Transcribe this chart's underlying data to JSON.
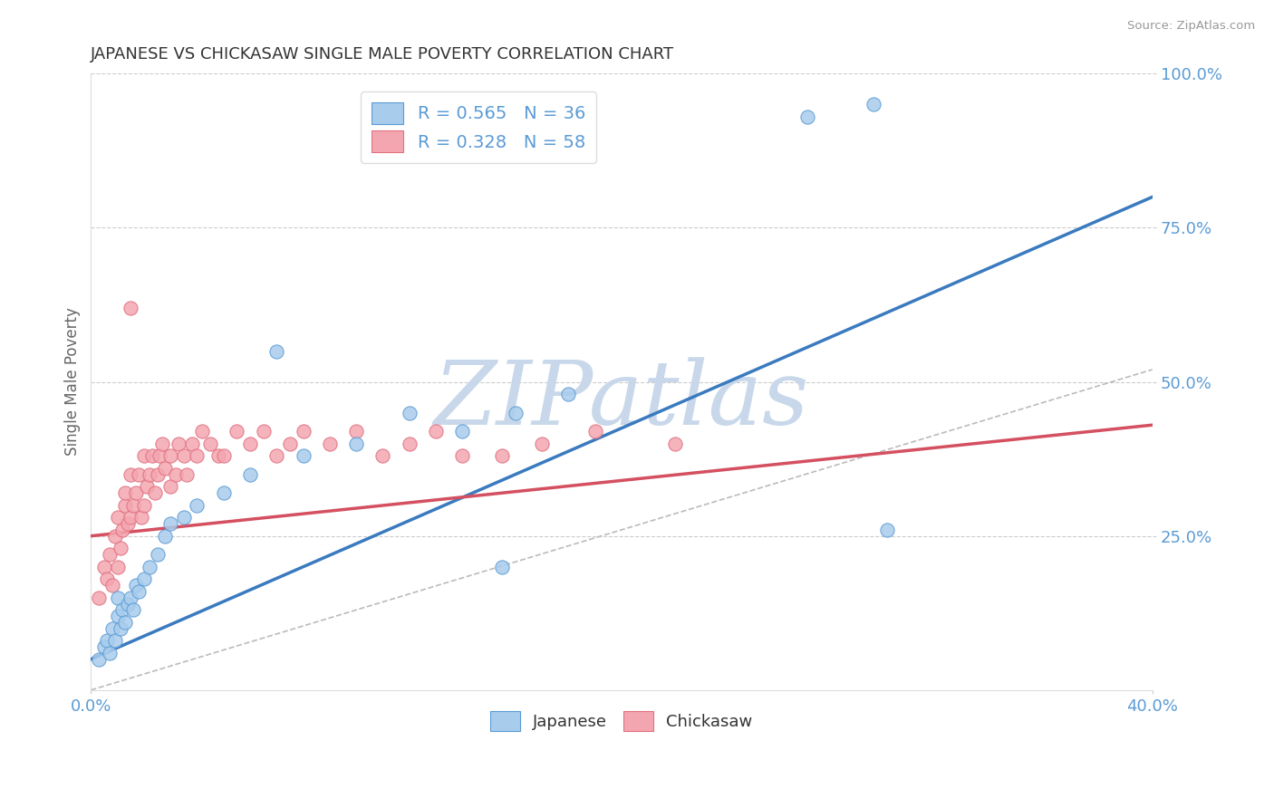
{
  "title": "JAPANESE VS CHICKASAW SINGLE MALE POVERTY CORRELATION CHART",
  "source": "Source: ZipAtlas.com",
  "ylabel": "Single Male Poverty",
  "xlim": [
    0.0,
    0.4
  ],
  "ylim": [
    0.0,
    1.0
  ],
  "R_japanese": 0.565,
  "N_japanese": 36,
  "R_chickasaw": 0.328,
  "N_chickasaw": 58,
  "japanese_fill": "#a8ccec",
  "japanese_edge": "#5b9bd5",
  "chickasaw_fill": "#f4a6b0",
  "chickasaw_edge": "#e07080",
  "japanese_line_color": "#3a7abf",
  "chickasaw_line_color": "#d45060",
  "grey_dash_color": "#bbbbbb",
  "watermark": "ZIPatlas",
  "watermark_color": "#c8d8ea",
  "background_color": "#ffffff",
  "grid_color": "#cccccc",
  "title_color": "#333333",
  "axis_label_color": "#666666",
  "tick_label_color": "#5b9bd5",
  "legend_text_color": "#5b9bd5",
  "japanese_x": [
    0.003,
    0.005,
    0.006,
    0.007,
    0.008,
    0.009,
    0.01,
    0.01,
    0.011,
    0.012,
    0.013,
    0.014,
    0.015,
    0.016,
    0.017,
    0.018,
    0.02,
    0.022,
    0.025,
    0.028,
    0.03,
    0.035,
    0.04,
    0.05,
    0.06,
    0.07,
    0.08,
    0.1,
    0.12,
    0.14,
    0.16,
    0.18,
    0.27,
    0.295,
    0.3,
    0.155
  ],
  "japanese_y": [
    0.05,
    0.07,
    0.08,
    0.06,
    0.1,
    0.08,
    0.12,
    0.15,
    0.1,
    0.13,
    0.11,
    0.14,
    0.15,
    0.13,
    0.17,
    0.16,
    0.18,
    0.2,
    0.22,
    0.25,
    0.27,
    0.28,
    0.3,
    0.32,
    0.35,
    0.55,
    0.38,
    0.4,
    0.45,
    0.42,
    0.45,
    0.48,
    0.93,
    0.95,
    0.26,
    0.2
  ],
  "chickasaw_x": [
    0.003,
    0.005,
    0.006,
    0.007,
    0.008,
    0.009,
    0.01,
    0.01,
    0.011,
    0.012,
    0.013,
    0.013,
    0.014,
    0.015,
    0.015,
    0.016,
    0.017,
    0.018,
    0.019,
    0.02,
    0.02,
    0.021,
    0.022,
    0.023,
    0.024,
    0.025,
    0.026,
    0.027,
    0.028,
    0.03,
    0.03,
    0.032,
    0.033,
    0.035,
    0.036,
    0.038,
    0.04,
    0.042,
    0.045,
    0.048,
    0.05,
    0.055,
    0.06,
    0.065,
    0.07,
    0.075,
    0.08,
    0.09,
    0.1,
    0.11,
    0.12,
    0.13,
    0.14,
    0.155,
    0.17,
    0.19,
    0.22,
    0.015
  ],
  "chickasaw_y": [
    0.15,
    0.2,
    0.18,
    0.22,
    0.17,
    0.25,
    0.2,
    0.28,
    0.23,
    0.26,
    0.3,
    0.32,
    0.27,
    0.28,
    0.35,
    0.3,
    0.32,
    0.35,
    0.28,
    0.3,
    0.38,
    0.33,
    0.35,
    0.38,
    0.32,
    0.35,
    0.38,
    0.4,
    0.36,
    0.33,
    0.38,
    0.35,
    0.4,
    0.38,
    0.35,
    0.4,
    0.38,
    0.42,
    0.4,
    0.38,
    0.38,
    0.42,
    0.4,
    0.42,
    0.38,
    0.4,
    0.42,
    0.4,
    0.42,
    0.38,
    0.4,
    0.42,
    0.38,
    0.38,
    0.4,
    0.42,
    0.4,
    0.62
  ],
  "blue_line_x": [
    0.0,
    0.4
  ],
  "blue_line_y": [
    0.05,
    0.8
  ],
  "pink_line_x": [
    0.0,
    0.4
  ],
  "pink_line_y": [
    0.25,
    0.43
  ],
  "grey_line_x": [
    0.0,
    0.4
  ],
  "grey_line_y": [
    0.0,
    0.52
  ]
}
